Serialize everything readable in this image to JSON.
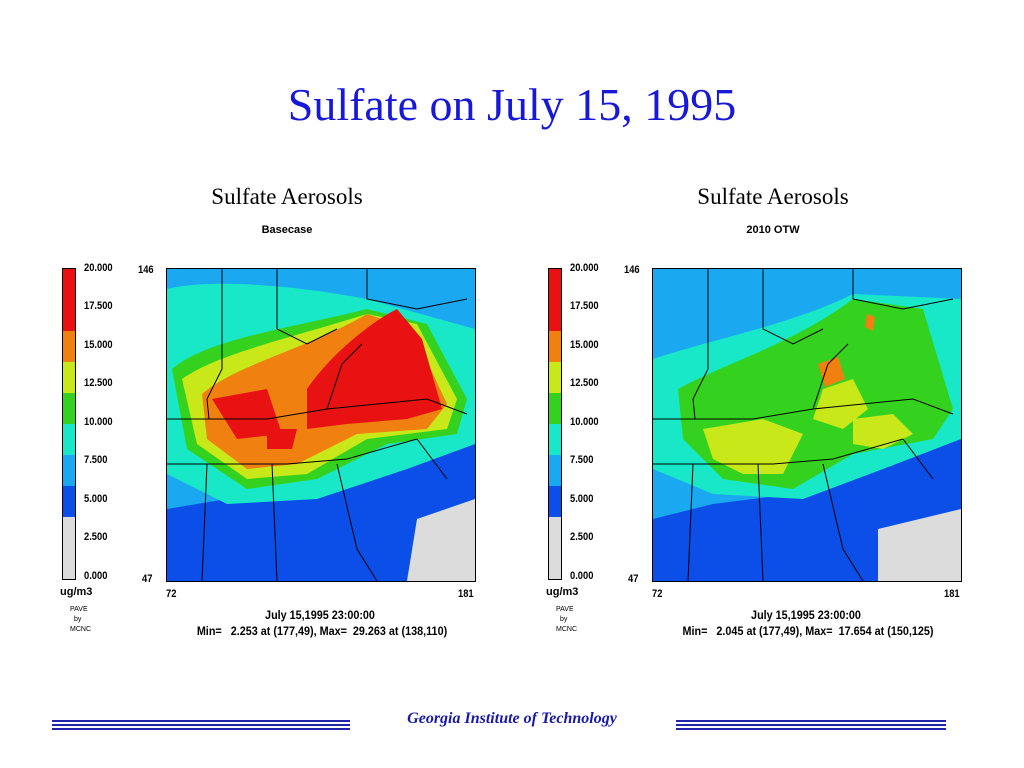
{
  "slide_title": "Sulfate on July 15, 1995",
  "footer": "Georgia Institute of Technology",
  "legend": {
    "labels": [
      "20.000",
      "17.500",
      "15.000",
      "12.500",
      "10.000",
      "7.500",
      "5.000",
      "2.500",
      "0.000"
    ],
    "colors": [
      "#e81212",
      "#f08010",
      "#c8e81a",
      "#34d21e",
      "#18e8c8",
      "#1aa8f0",
      "#0b4fe8",
      "#dcdcdc"
    ],
    "unit": "ug/m3",
    "credit": [
      "PAVE",
      "by",
      "MCNC"
    ]
  },
  "panels": [
    {
      "title": "Sulfate Aerosols",
      "subtitle": "Basecase",
      "y_top": "146",
      "y_bottom": "47",
      "x_left": "72",
      "x_right": "181",
      "time": "July 15,1995 23:00:00",
      "minmax": "Min=   2.253 at (177,49), Max=  29.263 at (138,110)",
      "min": 2.253,
      "max": 29.263
    },
    {
      "title": "Sulfate Aerosols",
      "subtitle": "2010 OTW",
      "y_top": "146",
      "y_bottom": "47",
      "x_left": "72",
      "x_right": "181",
      "time": "July 15,1995 23:00:00",
      "minmax": "Min=   2.045 at (177,49), Max=  17.654 at (150,125)",
      "min": 2.045,
      "max": 17.654
    }
  ]
}
